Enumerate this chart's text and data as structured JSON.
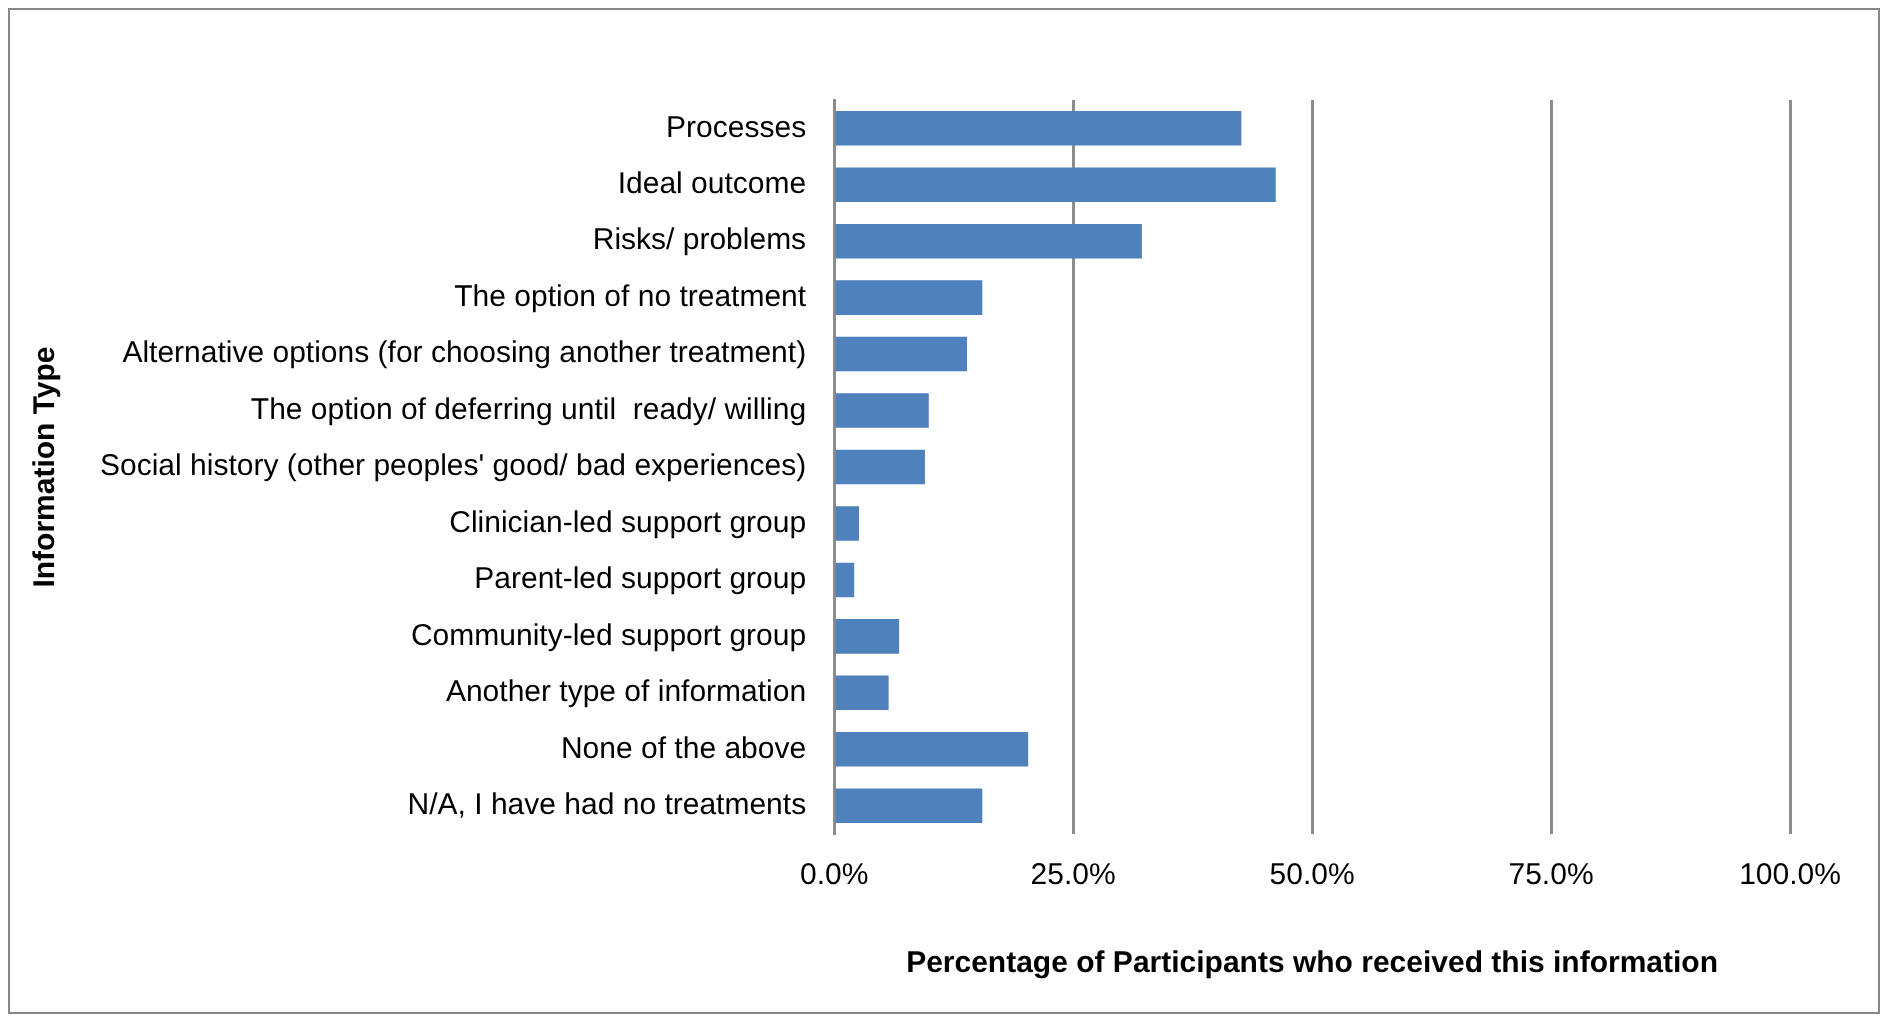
{
  "chart_data": {
    "type": "bar",
    "orientation": "horizontal",
    "xlabel": "Percentage of Participants who received this information",
    "ylabel": "Information Type",
    "categories": [
      "Processes",
      "Ideal outcome",
      "Risks/ problems",
      "The option of no treatment",
      "Alternative options (for choosing another treatment)",
      "The option of deferring until  ready/ willing",
      "Social history (other peoples' good/ bad experiences)",
      "Clinician-led support group",
      "Parent-led support group",
      "Community-led support group",
      "Another type of information",
      "None of the above",
      "N/A, I have had no treatments"
    ],
    "values": [
      42.6,
      46.2,
      32.2,
      15.5,
      13.9,
      9.9,
      9.5,
      2.6,
      2.1,
      6.8,
      5.7,
      20.3,
      15.5
    ],
    "color": "#4f81bd",
    "xlim": [
      0,
      100
    ],
    "xticks": [
      {
        "value": 0,
        "label": "0.0%"
      },
      {
        "value": 25,
        "label": "25.0%"
      },
      {
        "value": 50,
        "label": "50.0%"
      },
      {
        "value": 75,
        "label": "75.0%"
      },
      {
        "value": 100,
        "label": "100.0%"
      }
    ],
    "grid": "x",
    "legend": false
  }
}
